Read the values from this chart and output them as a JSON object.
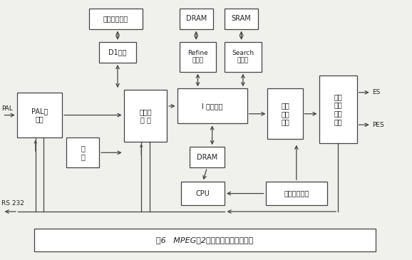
{
  "bg_color": "#f0f0ec",
  "box_color": "#ffffff",
  "line_color": "#444444",
  "text_color": "#222222",
  "title": "图6   MPEG－2视频编码器硬件原理图",
  "font": "SimSun",
  "boxes": {
    "digi_dev": [
      0.215,
      0.03,
      0.13,
      0.08,
      "数字视频设备",
      7.0
    ],
    "d1_if": [
      0.24,
      0.16,
      0.09,
      0.08,
      "D1接口",
      7.0
    ],
    "pal_dec": [
      0.04,
      0.355,
      0.11,
      0.175,
      "PAL解\n码器",
      7.0
    ],
    "frame_buf": [
      0.16,
      0.53,
      0.08,
      0.115,
      "帧\n存",
      7.0
    ],
    "pre_proc": [
      0.3,
      0.345,
      0.105,
      0.2,
      "前处理\n模 块",
      7.0
    ],
    "dram1": [
      0.435,
      0.03,
      0.082,
      0.08,
      "DRAM",
      7.0
    ],
    "sram": [
      0.545,
      0.03,
      0.082,
      0.08,
      "SRAM",
      7.0
    ],
    "refine": [
      0.435,
      0.16,
      0.09,
      0.115,
      "Refine\n处理器",
      6.5
    ],
    "search": [
      0.545,
      0.16,
      0.09,
      0.115,
      "Search\n处理器",
      6.5
    ],
    "i_enc": [
      0.43,
      0.34,
      0.17,
      0.135,
      "I 帧编码器",
      7.0
    ],
    "dram2": [
      0.46,
      0.565,
      0.085,
      0.08,
      "DRAM",
      7.0
    ],
    "io_buf1": [
      0.65,
      0.34,
      0.085,
      0.195,
      "输入\n输出\n缓存",
      7.0
    ],
    "io_ctrl": [
      0.775,
      0.29,
      0.092,
      0.26,
      "输入\n输出\n控制\n部分",
      7.0
    ],
    "cpu": [
      0.44,
      0.7,
      0.105,
      0.09,
      "CPU",
      7.0
    ],
    "io_buf2": [
      0.645,
      0.7,
      0.15,
      0.09,
      "输入输出缓存",
      7.0
    ]
  }
}
